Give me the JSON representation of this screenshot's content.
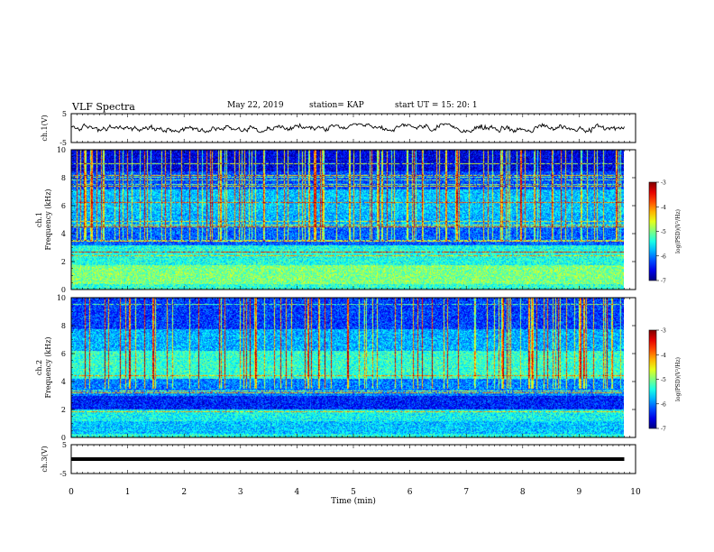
{
  "header": {
    "title": "VLF Spectra",
    "date": "May 22, 2019",
    "station": "station= KAP",
    "start": "start  UT =   15: 20: 1"
  },
  "chart_data": [
    {
      "type": "line",
      "panel": "ch1-waveform",
      "ylabel": "ch.1(V)",
      "yticks": [
        "5",
        "-5"
      ],
      "ylim": [
        -5,
        5
      ],
      "xlim": [
        0,
        10
      ],
      "x_extent": [
        0,
        9.8
      ],
      "series": [
        {
          "mean": 0.0,
          "amplitude": 1.5,
          "color": "#000000"
        }
      ]
    },
    {
      "type": "heatmap",
      "panel": "ch1-spectrogram",
      "ylabel": "ch.1\nFrequency (kHz)",
      "ylim": [
        0,
        10
      ],
      "yticks": [
        "0",
        "2",
        "4",
        "6",
        "8",
        "10"
      ],
      "xlim": [
        0,
        10
      ],
      "x_extent": [
        0,
        9.8
      ],
      "colorbar": {
        "label": "log(PSD)(V²/Hz)",
        "range": [
          -7,
          -3
        ],
        "ticks": [
          "-3",
          "-4",
          "-5",
          "-6",
          "-7"
        ]
      }
    },
    {
      "type": "heatmap",
      "panel": "ch2-spectrogram",
      "ylabel": "ch.2\nFrequency (kHz)",
      "ylim": [
        0,
        10
      ],
      "yticks": [
        "0",
        "2",
        "4",
        "6",
        "8",
        "10"
      ],
      "xlim": [
        0,
        10
      ],
      "x_extent": [
        0,
        9.8
      ],
      "colorbar": {
        "label": "log(PSD)(V²/Hz)",
        "range": [
          -7,
          -3
        ],
        "ticks": [
          "-3",
          "-4",
          "-5",
          "-6",
          "-7"
        ]
      }
    },
    {
      "type": "line",
      "panel": "ch3-waveform",
      "ylabel": "ch.3(V)",
      "yticks": [
        "5",
        "-5"
      ],
      "ylim": [
        -5,
        5
      ],
      "xlim": [
        0,
        10
      ],
      "x_extent": [
        0,
        9.8
      ],
      "series": [
        {
          "mean": 0.0,
          "amplitude": 0.0,
          "color": "#000000"
        }
      ]
    }
  ],
  "x_axis": {
    "label": "Time  (min)",
    "ticks": [
      "0",
      "1",
      "2",
      "3",
      "4",
      "5",
      "6",
      "7",
      "8",
      "9",
      "10"
    ]
  }
}
